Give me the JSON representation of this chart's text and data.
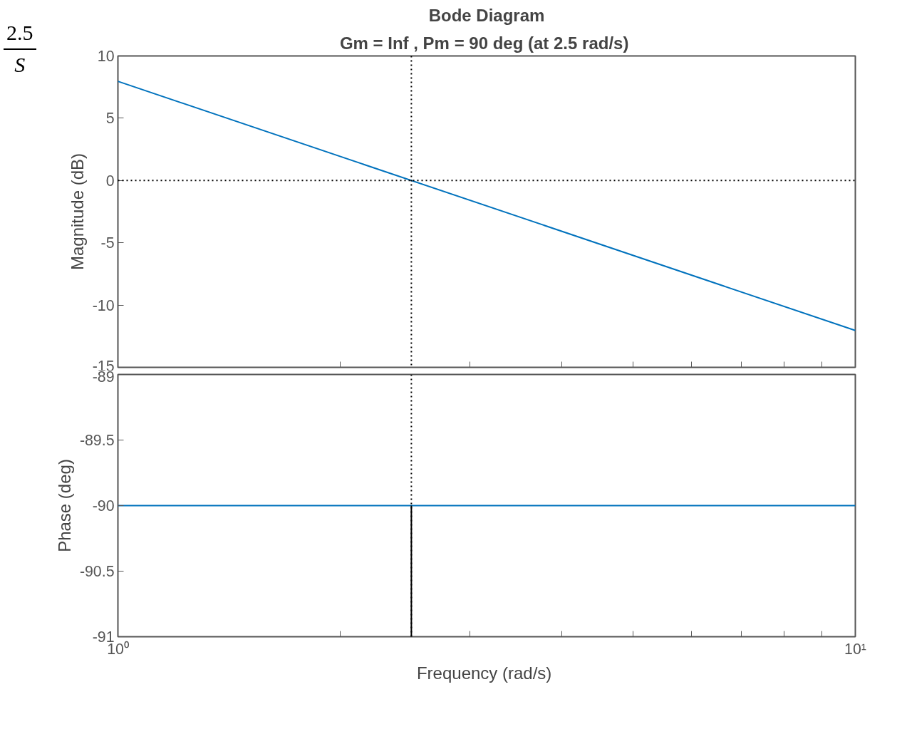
{
  "chart_data": [
    {
      "type": "line",
      "title": "Bode Diagram",
      "subtitle": "Gm = Inf ,  Pm = 90 deg (at 2.5 rad/s)",
      "ylabel": "Magnitude (dB)",
      "annotations": [
        "2.5",
        "S"
      ],
      "log": "x",
      "x": [
        1,
        10
      ],
      "series": [
        {
          "color": "#0072bd",
          "values": [
            7.96,
            -12.04
          ]
        }
      ],
      "xlim": [
        1,
        10
      ],
      "xticks": [
        1,
        2,
        3,
        4,
        5,
        6,
        7,
        8,
        9,
        10
      ],
      "ylim": [
        -15,
        10
      ],
      "yticks": [
        -15,
        -10,
        -5,
        0,
        5,
        10
      ],
      "tick_labels": "y",
      "grid": false,
      "ref_lines": [
        {
          "axis": "y",
          "value": 0,
          "color": "#000000",
          "line_style": "dotted"
        },
        {
          "axis": "x",
          "value": 2.5,
          "color": "#000000",
          "line_style": "dotted"
        }
      ]
    },
    {
      "type": "line",
      "xlabel": "Frequency  (rad/s)",
      "ylabel": "Phase (deg)",
      "log": "x",
      "series": [
        {
          "color": "#0072bd",
          "x": [
            1,
            10
          ],
          "values": [
            -90,
            -90
          ]
        },
        {
          "color": "#000000",
          "x": [
            2.5,
            2.5
          ],
          "values": [
            -91,
            -90
          ]
        }
      ],
      "xlim": [
        1,
        10
      ],
      "xticks": [
        {
          "value": 1,
          "label": "10⁰"
        },
        {
          "value": 2,
          "label": null
        },
        {
          "value": 3,
          "label": null
        },
        {
          "value": 4,
          "label": null
        },
        {
          "value": 5,
          "label": null
        },
        {
          "value": 6,
          "label": null
        },
        {
          "value": 7,
          "label": null
        },
        {
          "value": 8,
          "label": null
        },
        {
          "value": 9,
          "label": null
        },
        {
          "value": 10,
          "label": "10¹"
        }
      ],
      "ylim": [
        -91,
        -89
      ],
      "yticks": [
        -91,
        -90.5,
        -90,
        -89.5,
        -89
      ],
      "grid": false,
      "ref_lines": [
        {
          "axis": "x",
          "value": 2.5,
          "color": "#000000",
          "line_style": "dotted"
        }
      ]
    }
  ]
}
